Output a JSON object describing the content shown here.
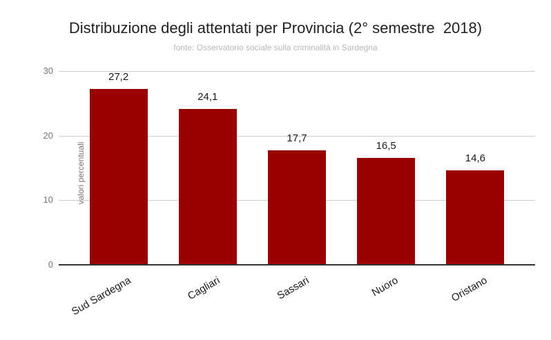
{
  "title": "Distribuzione degli attentati per Provincia (2° semestre  2018)",
  "subtitle": "fonte: Osservatorio sociale sulla criminalità in Sardegna",
  "colors": {
    "bar": "#990000",
    "gridline": "#cccccc",
    "axis_line": "#333333",
    "tick_label": "#757575",
    "title_text": "#212121",
    "subtitle_text": "#b7b7b7",
    "value_label": "#1a1a1a"
  },
  "chart_data": {
    "type": "bar",
    "title": "Distribuzione degli attentati per Provincia (2° semestre  2018)",
    "subtitle": "fonte: Osservatorio sociale sulla criminalità in Sardegna",
    "categories": [
      "Sud Sardegna",
      "Cagliari",
      "Sassari",
      "Nuoro",
      "Oristano"
    ],
    "values": [
      27.2,
      24.1,
      17.7,
      16.5,
      14.6
    ],
    "value_labels": [
      "27,2",
      "24,1",
      "17,7",
      "16,5",
      "14,6"
    ],
    "xlabel": "",
    "ylabel": "valori percentuali",
    "ylim": [
      0,
      30
    ],
    "yticks": [
      0,
      10,
      20,
      30
    ],
    "ytick_labels": [
      "0",
      "10",
      "20",
      "30"
    ],
    "grid": true,
    "legend_position": "none",
    "bar_color": "#990000"
  }
}
